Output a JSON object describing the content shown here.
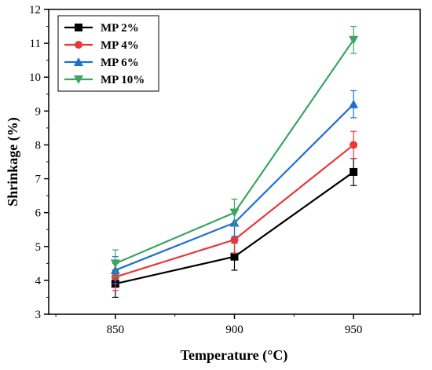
{
  "chart_data": {
    "type": "line",
    "title": "",
    "xlabel": "Temperature (°C)",
    "ylabel": "Shrinkage (%)",
    "x": [
      850,
      900,
      950
    ],
    "xlim": [
      822,
      978
    ],
    "ylim": [
      3,
      12
    ],
    "xticks": [
      "850",
      "900",
      "950"
    ],
    "yticks": [
      "3",
      "4",
      "5",
      "6",
      "7",
      "8",
      "9",
      "10",
      "11",
      "12"
    ],
    "grid": false,
    "legend_position": "top-left",
    "series": [
      {
        "name": "MP 2%",
        "color": "#000000",
        "marker": "square",
        "values": [
          3.9,
          4.7,
          7.2
        ],
        "errors": [
          0.4,
          0.4,
          0.4
        ]
      },
      {
        "name": "MP 4%",
        "color": "#e8383a",
        "marker": "circle",
        "values": [
          4.1,
          5.2,
          8.0
        ],
        "errors": [
          0.4,
          0.4,
          0.4
        ]
      },
      {
        "name": "MP 6%",
        "color": "#1f6fd0",
        "marker": "triangle-up",
        "values": [
          4.3,
          5.7,
          9.2
        ],
        "errors": [
          0.4,
          0.4,
          0.4
        ]
      },
      {
        "name": "MP 10%",
        "color": "#3aa564",
        "marker": "triangle-down",
        "values": [
          4.5,
          6.0,
          11.1
        ],
        "errors": [
          0.4,
          0.4,
          0.4
        ]
      }
    ]
  }
}
